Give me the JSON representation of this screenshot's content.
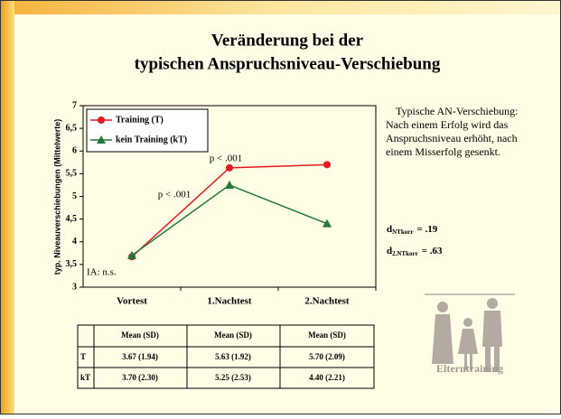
{
  "slide": {
    "title": [
      "Veränderung bei der",
      "typischen Anspruchsniveau-Verschiebung"
    ],
    "note": [
      "Typische AN-Verschiebung:",
      "Nach einem Erfolg wird das",
      "Anspruchsniveau erhöht, nach",
      "einem Misserfolg gesenkt."
    ],
    "effects": [
      {
        "symbol": "d",
        "subscript": "NTkorr",
        "value": "= .19"
      },
      {
        "symbol": "d",
        "subscript": "2.NTkorr",
        "value": "= .63"
      }
    ],
    "image_caption": "Elterntraining"
  },
  "table": {
    "header": [
      "Mean (SD)",
      "Mean (SD)",
      "Mean (SD)"
    ],
    "rows": [
      [
        "T",
        "3.67  (1.94)",
        "5.63  (1.92)",
        "5.70  (2.09)"
      ],
      [
        "kT",
        "3.70  (2.30)",
        "5.25  (2.53)",
        "4.40  (2.21)"
      ]
    ]
  },
  "chart_data": {
    "type": "line",
    "y_label": "typ. Niveauverschiebungen (Mittelwerte)",
    "categories": [
      "Vortest",
      "1.Nachtest",
      "2.Nachtest"
    ],
    "series": [
      {
        "name": "Training (T)",
        "color": "#e8191e",
        "marker": "circle",
        "values": [
          3.67,
          5.63,
          5.7
        ]
      },
      {
        "name": "kein Training (kT)",
        "color": "#1f7a3a",
        "marker": "triangle",
        "values": [
          3.7,
          5.25,
          4.4
        ]
      }
    ],
    "ylim": [
      3,
      7
    ],
    "yticks": [
      3,
      {
        "value": 3.5,
        "label": "3,5"
      },
      4,
      {
        "value": 4.5,
        "label": "4,5"
      },
      5,
      {
        "value": 5.5,
        "label": "5,5"
      },
      6,
      {
        "value": 6.5,
        "label": "6,5"
      },
      7
    ],
    "annotations": [
      "p < .001",
      "p < .001",
      "IA: n.s."
    ],
    "legend": "top-left"
  }
}
